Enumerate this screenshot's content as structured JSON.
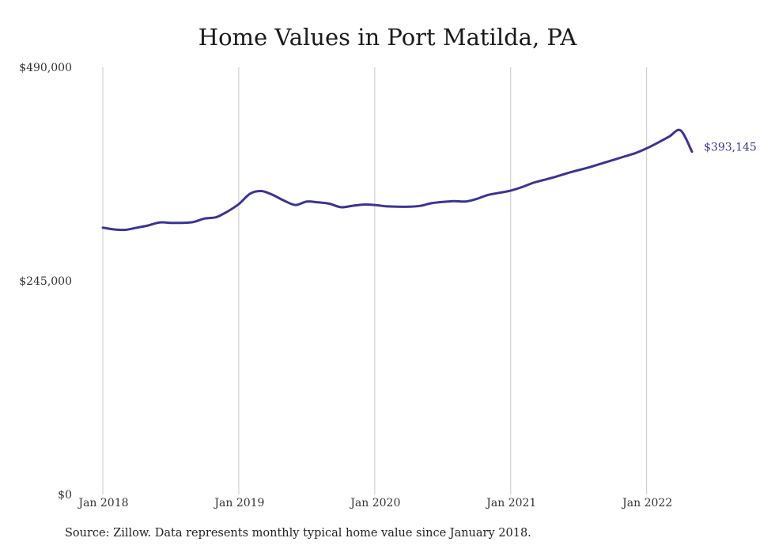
{
  "chart_data": {
    "type": "line",
    "title": "Home Values in Port Matilda, PA",
    "source_note": "Source: Zillow. Data represents monthly typical home value since January 2018.",
    "y_ticks": [
      {
        "value": 490000,
        "label": "$490,000"
      },
      {
        "value": 245000,
        "label": "$245,000"
      },
      {
        "value": 0,
        "label": "$0"
      }
    ],
    "x_ticks": [
      {
        "value": "2018-01",
        "label": "Jan 2018"
      },
      {
        "value": "2019-01",
        "label": "Jan 2019"
      },
      {
        "value": "2020-01",
        "label": "Jan 2020"
      },
      {
        "value": "2021-01",
        "label": "Jan 2021"
      },
      {
        "value": "2022-01",
        "label": "Jan 2022"
      }
    ],
    "ylim": [
      0,
      490000
    ],
    "xlim": [
      "2018-01",
      "2022-05"
    ],
    "grid": {
      "vertical": true,
      "horizontal": false
    },
    "line_color": "#3b3494",
    "end_label": "$393,145",
    "series": [
      {
        "x": [
          "2018-01",
          "2018-02",
          "2018-03",
          "2018-04",
          "2018-05",
          "2018-06",
          "2018-07",
          "2018-08",
          "2018-09",
          "2018-10",
          "2018-11",
          "2018-12",
          "2019-01",
          "2019-02",
          "2019-03",
          "2019-04",
          "2019-05",
          "2019-06",
          "2019-07",
          "2019-08",
          "2019-09",
          "2019-10",
          "2019-11",
          "2019-12",
          "2020-01",
          "2020-02",
          "2020-03",
          "2020-04",
          "2020-05",
          "2020-06",
          "2020-07",
          "2020-08",
          "2020-09",
          "2020-10",
          "2020-11",
          "2020-12",
          "2021-01",
          "2021-02",
          "2021-03",
          "2021-04",
          "2021-05",
          "2021-06",
          "2021-07",
          "2021-08",
          "2021-09",
          "2021-10",
          "2021-11",
          "2021-12",
          "2022-01",
          "2022-02",
          "2022-03",
          "2022-04",
          "2022-05"
        ],
        "values": [
          306000,
          304000,
          303500,
          306000,
          308500,
          312000,
          311500,
          311500,
          312500,
          316500,
          318000,
          324500,
          333000,
          345000,
          348000,
          343500,
          337000,
          332000,
          336000,
          335000,
          333500,
          329500,
          331000,
          332500,
          332000,
          330500,
          330000,
          330000,
          331000,
          334000,
          335500,
          336500,
          336000,
          339000,
          343500,
          346000,
          348500,
          352500,
          357500,
          361000,
          364500,
          368500,
          372000,
          375500,
          379500,
          383500,
          387500,
          391500,
          397000,
          403500,
          410500,
          417500,
          393145
        ]
      }
    ]
  }
}
